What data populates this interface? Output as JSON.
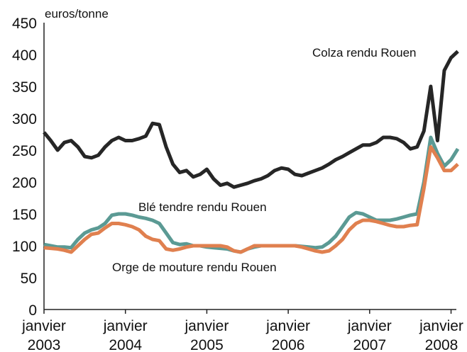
{
  "chart_data": {
    "type": "line",
    "y_label": "euros/tonne",
    "x": [
      2003,
      2003.083,
      2003.167,
      2003.25,
      2003.333,
      2003.417,
      2003.5,
      2003.583,
      2003.667,
      2003.75,
      2003.833,
      2003.917,
      2004,
      2004.083,
      2004.167,
      2004.25,
      2004.333,
      2004.417,
      2004.5,
      2004.583,
      2004.667,
      2004.75,
      2004.833,
      2004.917,
      2005,
      2005.083,
      2005.167,
      2005.25,
      2005.333,
      2005.417,
      2005.5,
      2005.583,
      2005.667,
      2005.75,
      2005.833,
      2005.917,
      2006,
      2006.083,
      2006.167,
      2006.25,
      2006.333,
      2006.417,
      2006.5,
      2006.583,
      2006.667,
      2006.75,
      2006.833,
      2006.917,
      2007,
      2007.083,
      2007.167,
      2007.25,
      2007.333,
      2007.417,
      2007.5,
      2007.583,
      2007.667,
      2007.75,
      2007.833,
      2007.917,
      2008,
      2008.083
    ],
    "series": [
      {
        "name": "Colza rendu Rouen",
        "color": "#262626",
        "values": [
          278,
          265,
          250,
          262,
          265,
          255,
          240,
          238,
          242,
          255,
          265,
          270,
          265,
          265,
          268,
          272,
          292,
          290,
          255,
          228,
          215,
          218,
          208,
          212,
          220,
          205,
          195,
          198,
          192,
          195,
          198,
          202,
          205,
          210,
          218,
          222,
          220,
          212,
          210,
          214,
          218,
          222,
          228,
          235,
          240,
          246,
          252,
          258,
          258,
          262,
          270,
          270,
          268,
          262,
          252,
          255,
          280,
          350,
          265,
          375,
          395,
          405
        ]
      },
      {
        "name": "Blé tendre rendu Rouen",
        "color": "#5b9a94",
        "values": [
          102,
          100,
          98,
          98,
          97,
          110,
          120,
          125,
          128,
          135,
          148,
          150,
          150,
          148,
          145,
          143,
          140,
          135,
          120,
          105,
          102,
          103,
          100,
          100,
          98,
          97,
          96,
          95,
          92,
          90,
          95,
          98,
          100,
          100,
          100,
          100,
          100,
          100,
          99,
          98,
          97,
          98,
          105,
          115,
          130,
          145,
          152,
          150,
          145,
          140,
          140,
          140,
          142,
          145,
          148,
          150,
          200,
          270,
          245,
          225,
          235,
          252
        ]
      },
      {
        "name": "Orge de mouture rendu Rouen",
        "color": "#e0804f",
        "values": [
          97,
          96,
          95,
          93,
          90,
          100,
          110,
          118,
          120,
          128,
          135,
          135,
          133,
          130,
          125,
          115,
          110,
          108,
          95,
          93,
          95,
          98,
          100,
          100,
          100,
          100,
          100,
          98,
          92,
          90,
          95,
          100,
          100,
          100,
          100,
          100,
          100,
          100,
          98,
          95,
          92,
          90,
          92,
          100,
          110,
          125,
          135,
          140,
          140,
          138,
          135,
          132,
          130,
          130,
          132,
          133,
          190,
          255,
          238,
          218,
          218,
          228
        ]
      }
    ],
    "xlim": [
      2003,
      2008.1
    ],
    "xticks": [
      {
        "value": 2003,
        "label": "janvier 2003"
      },
      {
        "value": 2004,
        "label": "janvier 2004"
      },
      {
        "value": 2005,
        "label": "janvier 2005"
      },
      {
        "value": 2006,
        "label": "janvier 2006"
      },
      {
        "value": 2007,
        "label": "janvier 2007"
      },
      {
        "value": 2008,
        "label": "janvier 2008"
      }
    ],
    "ylim": [
      0,
      450
    ],
    "yticks": [
      0,
      50,
      100,
      150,
      200,
      250,
      300,
      350,
      400,
      450
    ],
    "grid": false
  }
}
